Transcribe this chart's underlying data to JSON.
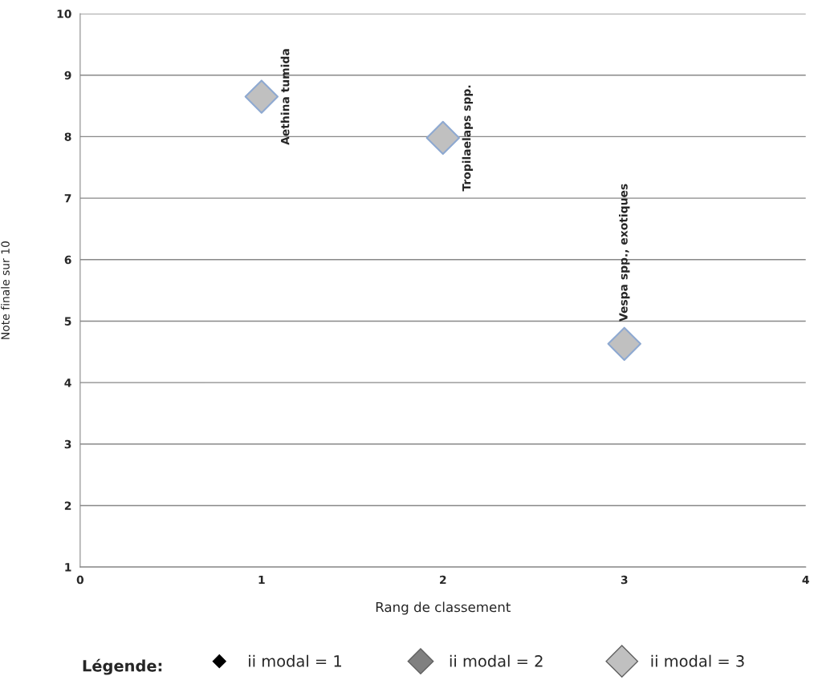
{
  "chart_data": {
    "type": "scatter",
    "xlabel": "Rang de classement",
    "ylabel": "Note finale sur 10",
    "x": [
      1,
      2,
      3
    ],
    "series": [
      {
        "name": "ii modal = 1",
        "color": "#000000",
        "values": [
          null,
          null,
          null
        ]
      },
      {
        "name": "ii modal = 2",
        "color": "#808080",
        "values": [
          null,
          null,
          null
        ]
      },
      {
        "name": "ii modal = 3",
        "color": "#c0c0c0",
        "values": [
          8.65,
          7.98,
          4.63
        ]
      }
    ],
    "annotations": [
      {
        "text": "Aethina tumida",
        "x": 1,
        "y": 8.65
      },
      {
        "text": "Tropilaelaps spp.",
        "x": 2,
        "y": 7.98
      },
      {
        "text": "Vespa spp., exotiques",
        "x": 3,
        "y": 4.63
      }
    ],
    "xlim": [
      0,
      4
    ],
    "xticks": [
      0,
      1,
      2,
      3,
      4
    ],
    "ylim": [
      1,
      10
    ],
    "yticks": [
      1,
      2,
      3,
      4,
      5,
      6,
      7,
      8,
      9,
      10
    ],
    "grid": "y",
    "marker": "diamond",
    "legend": "bottom",
    "legend_title": "Légende:"
  }
}
